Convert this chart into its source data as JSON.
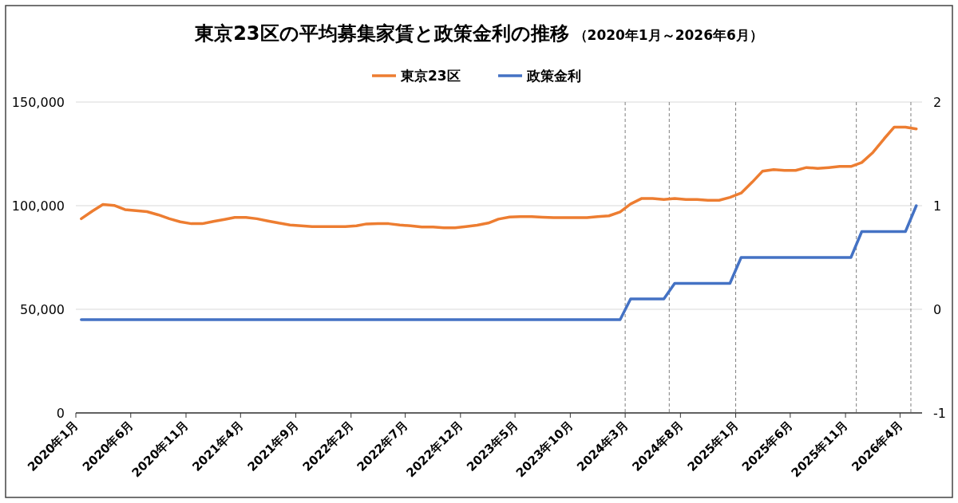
{
  "chart_data": {
    "type": "line",
    "title": "東京23区の平均募集家賃と政策金利の推移",
    "subtitle": "（2020年1月～2026年6月）",
    "x": [
      "2020-01-16",
      "2020-02-16",
      "2020-03-16",
      "2020-04-16",
      "2020-05-16",
      "2020-06-16",
      "2020-07-16",
      "2020-08-16",
      "2020-09-16",
      "2020-10-16",
      "2020-11-16",
      "2020-12-16",
      "2021-01-16",
      "2021-02-16",
      "2021-03-16",
      "2021-04-16",
      "2021-05-16",
      "2021-06-16",
      "2021-07-16",
      "2021-08-16",
      "2021-09-16",
      "2021-10-16",
      "2021-11-16",
      "2021-12-16",
      "2022-01-16",
      "2022-02-16",
      "2022-03-16",
      "2022-04-16",
      "2022-05-16",
      "2022-06-16",
      "2022-07-16",
      "2022-08-16",
      "2022-09-16",
      "2022-10-16",
      "2022-11-16",
      "2022-12-16",
      "2023-01-16",
      "2023-02-16",
      "2023-03-16",
      "2023-04-16",
      "2023-05-16",
      "2023-06-16",
      "2023-07-16",
      "2023-08-16",
      "2023-09-16",
      "2023-10-16",
      "2023-11-16",
      "2023-12-16",
      "2024-01-16",
      "2024-02-16",
      "2024-03-16",
      "2024-04-16",
      "2024-05-16",
      "2024-06-16",
      "2024-07-16",
      "2024-08-16",
      "2024-09-16",
      "2024-10-16",
      "2024-11-16",
      "2024-12-16",
      "2025-01-16",
      "2025-02-16",
      "2025-03-16",
      "2025-04-16",
      "2025-05-16",
      "2025-06-16",
      "2025-07-16",
      "2025-08-16",
      "2025-09-16",
      "2025-10-16",
      "2025-11-16",
      "2025-12-16",
      "2026-01-16",
      "2026-02-16",
      "2026-03-16",
      "2026-04-16",
      "2026-05-16"
    ],
    "series": [
      {
        "name": "東京23区",
        "color": "#ed7d31",
        "values": [
          93700,
          97400,
          100600,
          100100,
          98100,
          97600,
          97100,
          95600,
          93700,
          92200,
          91300,
          91300,
          92400,
          93400,
          94300,
          94300,
          93700,
          92600,
          91600,
          90700,
          90300,
          89900,
          89900,
          89900,
          89900,
          90300,
          91200,
          91300,
          91300,
          90700,
          90300,
          89700,
          89700,
          89300,
          89300,
          89900,
          90600,
          91600,
          93500,
          94500,
          94700,
          94700,
          94400,
          94200,
          94200,
          94200,
          94200,
          94700,
          95100,
          97000,
          100800,
          103500,
          103500,
          103000,
          103500,
          103000,
          103000,
          102600,
          102600,
          104000,
          106100,
          111400,
          116600,
          117400,
          117000,
          117000,
          118400,
          118000,
          118400,
          118900,
          118900,
          120800,
          125700,
          132300,
          137900,
          137900,
          137000
        ]
      },
      {
        "name": "政策金利",
        "color": "#4472c4",
        "axis": "y2",
        "values": [
          -0.1,
          -0.1,
          -0.1,
          -0.1,
          -0.1,
          -0.1,
          -0.1,
          -0.1,
          -0.1,
          -0.1,
          -0.1,
          -0.1,
          -0.1,
          -0.1,
          -0.1,
          -0.1,
          -0.1,
          -0.1,
          -0.1,
          -0.1,
          -0.1,
          -0.1,
          -0.1,
          -0.1,
          -0.1,
          -0.1,
          -0.1,
          -0.1,
          -0.1,
          -0.1,
          -0.1,
          -0.1,
          -0.1,
          -0.1,
          -0.1,
          -0.1,
          -0.1,
          -0.1,
          -0.1,
          -0.1,
          -0.1,
          -0.1,
          -0.1,
          -0.1,
          -0.1,
          -0.1,
          -0.1,
          -0.1,
          -0.1,
          -0.1,
          0.1,
          0.1,
          0.1,
          0.1,
          0.25,
          0.25,
          0.25,
          0.25,
          0.25,
          0.25,
          0.5,
          0.5,
          0.5,
          0.5,
          0.5,
          0.5,
          0.5,
          0.5,
          0.5,
          0.5,
          0.5,
          0.75,
          0.75,
          0.75,
          0.75,
          0.75,
          1
        ]
      }
    ],
    "xlim": [
      "2020-01-01",
      "2026-06-01"
    ],
    "xticks": [
      {
        "value": "2020-01-01",
        "label": "2020年1月"
      },
      {
        "value": "2020-06-01",
        "label": "2020年6月"
      },
      {
        "value": "2020-11-01",
        "label": "2020年11月"
      },
      {
        "value": "2021-04-01",
        "label": "2021年4月"
      },
      {
        "value": "2021-09-01",
        "label": "2021年9月"
      },
      {
        "value": "2022-02-01",
        "label": "2022年2月"
      },
      {
        "value": "2022-07-01",
        "label": "2022年7月"
      },
      {
        "value": "2022-12-01",
        "label": "2022年12月"
      },
      {
        "value": "2023-05-01",
        "label": "2023年5月"
      },
      {
        "value": "2023-10-01",
        "label": "2023年10月"
      },
      {
        "value": "2024-03-01",
        "label": "2024年3月"
      },
      {
        "value": "2024-08-01",
        "label": "2024年8月"
      },
      {
        "value": "2025-01-01",
        "label": "2025年1月"
      },
      {
        "value": "2025-06-01",
        "label": "2025年6月"
      },
      {
        "value": "2025-11-01",
        "label": "2025年11月"
      },
      {
        "value": "2026-04-01",
        "label": "2026年4月"
      }
    ],
    "ylim": [
      0,
      150000
    ],
    "yticks": [
      0,
      {
        "value": 50000,
        "label": "50,000"
      },
      {
        "value": 100000,
        "label": "100,000"
      },
      {
        "value": 150000,
        "label": "150,000"
      }
    ],
    "y2lim": [
      -1,
      2
    ],
    "y2ticks": [
      -1,
      0,
      1,
      2
    ],
    "ref_lines": [
      {
        "axis": "x",
        "value": "2024-03-01",
        "color": "#7f7f7f",
        "line_style": "dashed"
      },
      {
        "axis": "x",
        "value": "2024-07-01",
        "color": "#7f7f7f",
        "line_style": "dashed"
      },
      {
        "axis": "x",
        "value": "2025-01-01",
        "color": "#7f7f7f",
        "line_style": "dashed"
      },
      {
        "axis": "x",
        "value": "2025-12-01",
        "color": "#7f7f7f",
        "line_style": "dashed"
      },
      {
        "axis": "x",
        "value": "2026-05-01",
        "color": "#7f7f7f",
        "line_style": "dashed"
      }
    ],
    "grid": "y",
    "legend": "top",
    "marker": "none",
    "line_style": "solid"
  }
}
